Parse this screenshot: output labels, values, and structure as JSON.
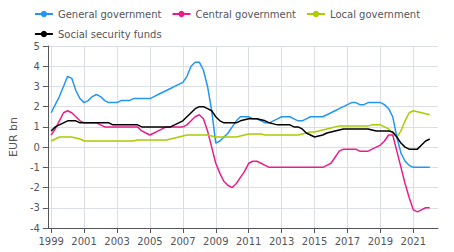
{
  "chart_data": {
    "type": "line",
    "ylabel": "EUR bn",
    "x": [
      1999,
      1999.25,
      1999.5,
      1999.75,
      2000,
      2000.25,
      2000.5,
      2000.75,
      2001,
      2001.25,
      2001.5,
      2001.75,
      2002,
      2002.25,
      2002.5,
      2002.75,
      2003,
      2003.25,
      2003.5,
      2003.75,
      2004,
      2004.25,
      2004.5,
      2004.75,
      2005,
      2005.25,
      2005.5,
      2005.75,
      2006,
      2006.25,
      2006.5,
      2006.75,
      2007,
      2007.25,
      2007.5,
      2007.75,
      2008,
      2008.25,
      2008.5,
      2008.75,
      2009,
      2009.25,
      2009.5,
      2009.75,
      2010,
      2010.25,
      2010.5,
      2010.75,
      2011,
      2011.25,
      2011.5,
      2011.75,
      2012,
      2012.25,
      2012.5,
      2012.75,
      2013,
      2013.25,
      2013.5,
      2013.75,
      2014,
      2014.25,
      2014.5,
      2014.75,
      2015,
      2015.25,
      2015.5,
      2015.75,
      2016,
      2016.25,
      2016.5,
      2016.75,
      2017,
      2017.25,
      2017.5,
      2017.75,
      2018,
      2018.25,
      2018.5,
      2018.75,
      2019,
      2019.25,
      2019.5,
      2019.75,
      2020,
      2020.25,
      2020.5,
      2020.75,
      2021,
      2021.25,
      2021.5,
      2021.75,
      2022
    ],
    "series": [
      {
        "name": "General government",
        "color": "#2196f3",
        "values": [
          1.7,
          2.1,
          2.5,
          3.0,
          3.5,
          3.4,
          2.8,
          2.4,
          2.2,
          2.3,
          2.5,
          2.6,
          2.5,
          2.3,
          2.2,
          2.2,
          2.2,
          2.3,
          2.3,
          2.3,
          2.4,
          2.4,
          2.4,
          2.4,
          2.4,
          2.5,
          2.6,
          2.7,
          2.8,
          2.9,
          3.0,
          3.1,
          3.2,
          3.5,
          4.0,
          4.2,
          4.2,
          3.8,
          3.0,
          1.8,
          0.2,
          0.3,
          0.5,
          0.7,
          1.0,
          1.3,
          1.5,
          1.5,
          1.5,
          1.4,
          1.4,
          1.3,
          1.2,
          1.2,
          1.3,
          1.4,
          1.5,
          1.5,
          1.5,
          1.4,
          1.3,
          1.3,
          1.4,
          1.5,
          1.5,
          1.5,
          1.5,
          1.6,
          1.7,
          1.8,
          1.9,
          2.0,
          2.1,
          2.2,
          2.2,
          2.1,
          2.1,
          2.2,
          2.2,
          2.2,
          2.2,
          2.1,
          1.9,
          1.5,
          0.5,
          -0.3,
          -0.7,
          -0.9,
          -1.0,
          -1.0,
          -1.0,
          -1.0,
          -1.0
        ]
      },
      {
        "name": "Central government",
        "color": "#e91e8c",
        "values": [
          0.6,
          0.9,
          1.3,
          1.7,
          1.8,
          1.7,
          1.5,
          1.3,
          1.2,
          1.2,
          1.2,
          1.2,
          1.1,
          1.0,
          1.0,
          1.0,
          1.0,
          1.0,
          1.0,
          1.0,
          1.0,
          1.0,
          0.8,
          0.7,
          0.6,
          0.7,
          0.8,
          0.9,
          1.0,
          1.0,
          1.0,
          1.0,
          1.0,
          1.1,
          1.3,
          1.5,
          1.6,
          1.4,
          0.8,
          0.0,
          -0.8,
          -1.3,
          -1.7,
          -1.9,
          -2.0,
          -1.8,
          -1.5,
          -1.2,
          -0.8,
          -0.7,
          -0.7,
          -0.8,
          -0.9,
          -1.0,
          -1.0,
          -1.0,
          -1.0,
          -1.0,
          -1.0,
          -1.0,
          -1.0,
          -1.0,
          -1.0,
          -1.0,
          -1.0,
          -1.0,
          -1.0,
          -0.9,
          -0.8,
          -0.5,
          -0.2,
          -0.1,
          -0.1,
          -0.1,
          -0.1,
          -0.2,
          -0.2,
          -0.2,
          -0.1,
          0.0,
          0.1,
          0.3,
          0.6,
          0.6,
          -0.2,
          -1.0,
          -1.8,
          -2.5,
          -3.1,
          -3.2,
          -3.1,
          -3.0,
          -3.0
        ]
      },
      {
        "name": "Local government",
        "color": "#aacc00",
        "values": [
          0.3,
          0.4,
          0.5,
          0.5,
          0.5,
          0.5,
          0.45,
          0.4,
          0.3,
          0.3,
          0.3,
          0.3,
          0.3,
          0.3,
          0.3,
          0.3,
          0.3,
          0.3,
          0.3,
          0.3,
          0.3,
          0.35,
          0.35,
          0.35,
          0.35,
          0.35,
          0.35,
          0.35,
          0.35,
          0.4,
          0.45,
          0.5,
          0.55,
          0.6,
          0.6,
          0.6,
          0.6,
          0.6,
          0.6,
          0.55,
          0.5,
          0.5,
          0.5,
          0.5,
          0.5,
          0.5,
          0.55,
          0.6,
          0.65,
          0.65,
          0.65,
          0.65,
          0.6,
          0.6,
          0.6,
          0.6,
          0.6,
          0.6,
          0.6,
          0.6,
          0.6,
          0.65,
          0.7,
          0.75,
          0.75,
          0.8,
          0.85,
          0.9,
          0.95,
          1.0,
          1.05,
          1.05,
          1.05,
          1.05,
          1.05,
          1.05,
          1.05,
          1.05,
          1.1,
          1.1,
          1.1,
          1.0,
          0.9,
          0.7,
          0.5,
          0.8,
          1.3,
          1.7,
          1.8,
          1.75,
          1.7,
          1.65,
          1.6
        ]
      },
      {
        "name": "Social security funds",
        "color": "#000000",
        "values": [
          0.8,
          1.0,
          1.1,
          1.2,
          1.3,
          1.3,
          1.3,
          1.2,
          1.2,
          1.2,
          1.2,
          1.2,
          1.2,
          1.2,
          1.2,
          1.1,
          1.1,
          1.1,
          1.1,
          1.1,
          1.1,
          1.1,
          1.0,
          1.0,
          1.0,
          1.0,
          1.0,
          1.0,
          1.0,
          1.0,
          1.1,
          1.2,
          1.3,
          1.5,
          1.7,
          1.9,
          2.0,
          2.0,
          1.9,
          1.8,
          1.5,
          1.3,
          1.2,
          1.2,
          1.2,
          1.2,
          1.3,
          1.35,
          1.4,
          1.4,
          1.4,
          1.35,
          1.3,
          1.2,
          1.15,
          1.1,
          1.1,
          1.1,
          1.1,
          1.0,
          1.0,
          0.9,
          0.7,
          0.6,
          0.5,
          0.55,
          0.6,
          0.7,
          0.75,
          0.8,
          0.85,
          0.9,
          0.9,
          0.9,
          0.9,
          0.9,
          0.9,
          0.9,
          0.85,
          0.8,
          0.8,
          0.8,
          0.8,
          0.75,
          0.5,
          0.2,
          0.0,
          -0.1,
          -0.1,
          -0.1,
          0.1,
          0.3,
          0.4
        ]
      }
    ],
    "xlim": [
      1998.8,
      2022.5
    ],
    "ylim": [
      -4,
      5
    ],
    "xticks": [
      1999,
      2001,
      2003,
      2005,
      2007,
      2009,
      2011,
      2013,
      2015,
      2017,
      2019,
      2021
    ],
    "yticks": [
      -4,
      -3,
      -2,
      -1,
      0,
      1,
      2,
      3,
      4,
      5
    ],
    "grid": true,
    "legend": "top"
  }
}
